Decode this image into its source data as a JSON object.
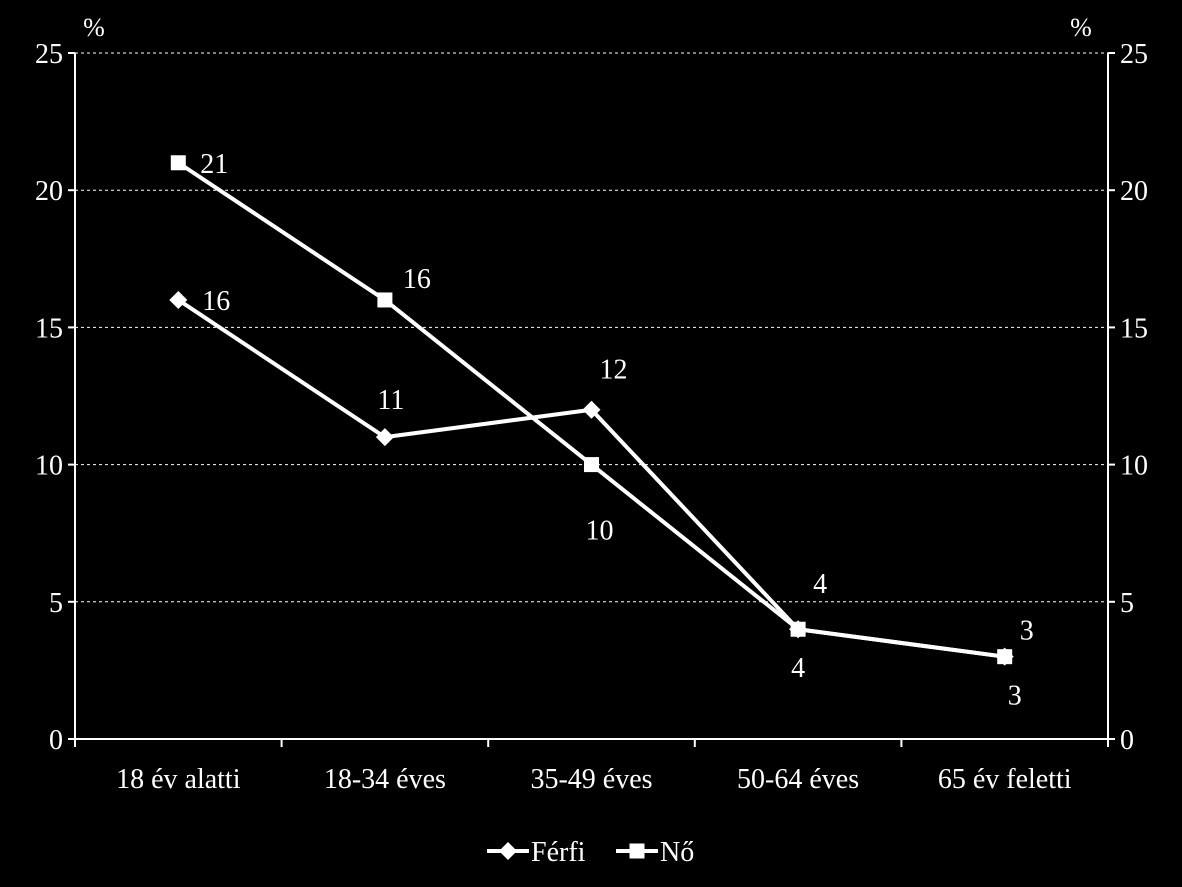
{
  "chart_data": {
    "type": "line",
    "categories": [
      "18 év alatti",
      "18-34 éves",
      "35-49 éves",
      "50-64 éves",
      "65 év feletti"
    ],
    "series": [
      {
        "name": "Férfi",
        "marker": "diamond",
        "values": [
          16,
          11,
          12,
          4,
          3
        ]
      },
      {
        "name": "Nő",
        "marker": "square",
        "values": [
          21,
          16,
          10,
          4,
          3
        ]
      }
    ],
    "ylim": [
      0,
      25
    ],
    "yticks": [
      "0",
      "5",
      "10",
      "15",
      "20",
      "25"
    ],
    "y_unit_left": "%",
    "y_unit_right": "%",
    "secondary_y_axis": true,
    "grid": "horizontal dashed",
    "legend_position": "bottom",
    "colors": {
      "background": "#000000",
      "line": "#ffffff",
      "grid": "#ffffff"
    }
  }
}
